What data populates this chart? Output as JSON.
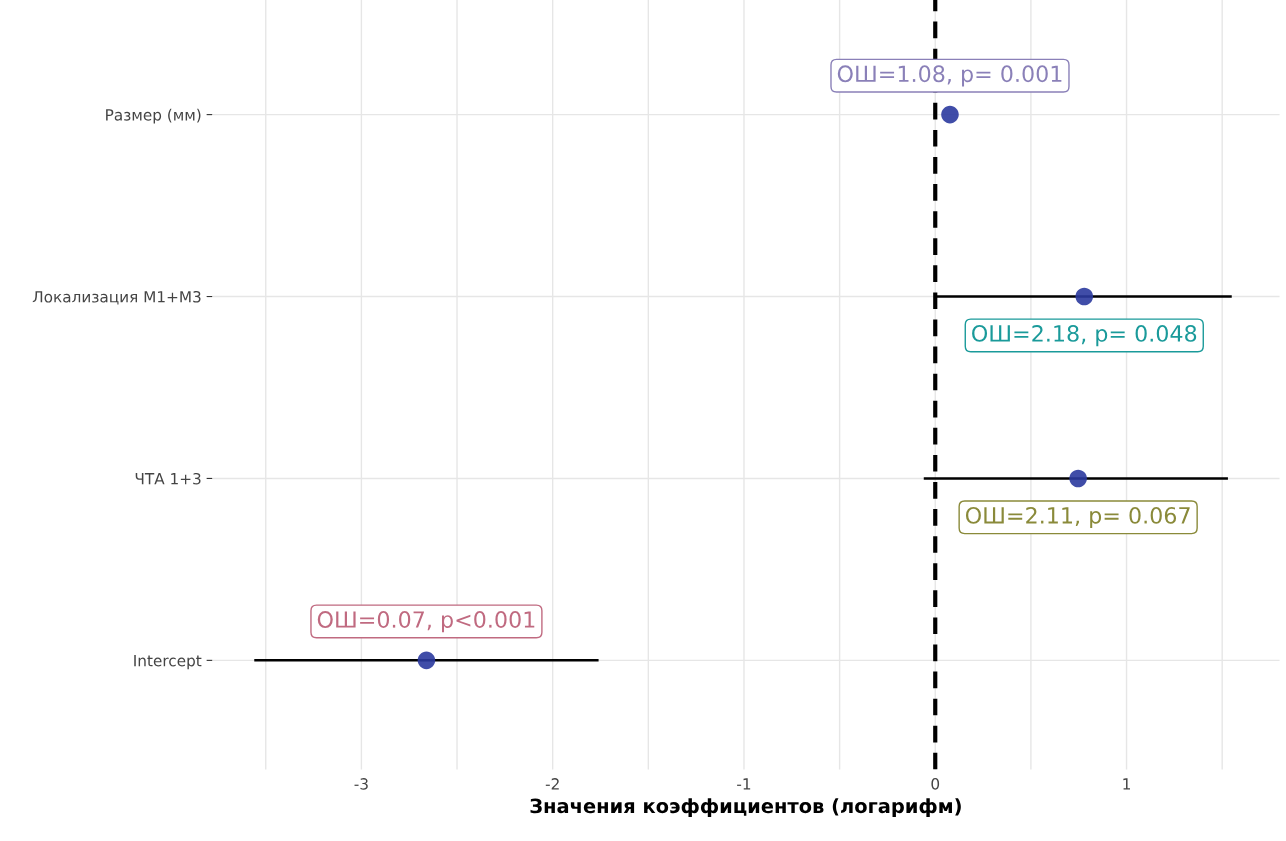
{
  "chart_data": {
    "type": "scatter",
    "orientation": "horizontal",
    "xlabel": "Значения коэффициентов (логарифм)",
    "categories": [
      "Размер (мм)",
      "Локализация М1+М3",
      "ЧТА 1+3",
      "Intercept"
    ],
    "color": "#2b3a9e",
    "values": [
      0.077,
      0.779,
      0.747,
      -2.66
    ],
    "errors": [
      null,
      [
        0.0,
        1.55
      ],
      [
        -0.06,
        1.53
      ],
      [
        -3.56,
        -1.76
      ]
    ],
    "value_labels": [
      "ОШ=1.08, p= 0.001",
      "ОШ=2.18, p= 0.048",
      "ОШ=2.11, p= 0.067",
      "ОШ=0.07, p<0.001"
    ],
    "xlim": [
      -3.78,
      1.8
    ],
    "xticks": [
      {
        "value": -3.5,
        "label": null
      },
      -3,
      {
        "value": -2.5,
        "label": null
      },
      -2,
      {
        "value": -1.5,
        "label": null
      },
      -1,
      {
        "value": -0.5,
        "label": null
      },
      0,
      {
        "value": 0.5,
        "label": null
      },
      1,
      {
        "value": 1.5,
        "label": null
      }
    ],
    "ref_lines": [
      {
        "axis": "x",
        "value": 0,
        "color": "#000000",
        "line_style": "dashed"
      }
    ],
    "grid": true,
    "legend": false,
    "marker": "circle"
  }
}
